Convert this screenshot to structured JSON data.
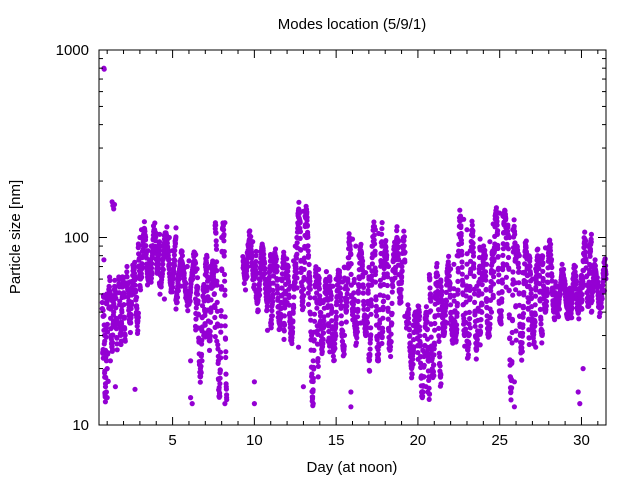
{
  "chart_data": {
    "type": "scatter",
    "title": "Modes location (5/9/1)",
    "xlabel": "Day (at noon)",
    "ylabel": "Particle size [nm]",
    "xlim": [
      0.5,
      31.5
    ],
    "ylim": [
      10,
      1000
    ],
    "yscale": "log",
    "xticks": [
      5,
      10,
      15,
      20,
      25,
      30
    ],
    "xtick_labels": [
      "5",
      "10",
      "15",
      "20",
      "25",
      "30"
    ],
    "yticks": [
      10,
      100,
      1000
    ],
    "ytick_labels": [
      "10",
      "100",
      "1000"
    ],
    "marker_color": "#9400D3",
    "grid": false,
    "legend": "none",
    "series": [
      {
        "points": [
          [
            0.8,
            800
          ],
          [
            0.82,
            790
          ],
          [
            0.7,
            45
          ],
          [
            0.75,
            38
          ],
          [
            0.8,
            32
          ],
          [
            0.85,
            28
          ],
          [
            0.9,
            25
          ],
          [
            0.95,
            22
          ],
          [
            1.0,
            20
          ],
          [
            0.8,
            76
          ],
          [
            0.85,
            18
          ],
          [
            0.9,
            16
          ],
          [
            0.95,
            15
          ],
          [
            1.0,
            14
          ],
          [
            1.1,
            42
          ],
          [
            1.2,
            50
          ],
          [
            1.3,
            46
          ],
          [
            1.4,
            40
          ],
          [
            1.5,
            36
          ],
          [
            1.3,
            155
          ],
          [
            1.35,
            148
          ],
          [
            1.4,
            142
          ],
          [
            1.45,
            150
          ],
          [
            1.5,
            16
          ],
          [
            1.2,
            22
          ],
          [
            1.3,
            30
          ],
          [
            1.7,
            35
          ],
          [
            1.8,
            38
          ],
          [
            1.9,
            40
          ],
          [
            2.0,
            55
          ],
          [
            2.2,
            62
          ],
          [
            2.4,
            58
          ],
          [
            2.6,
            50
          ],
          [
            2.7,
            15.5
          ],
          [
            2.8,
            48
          ],
          [
            2.9,
            70
          ],
          [
            3.0,
            100
          ],
          [
            3.1,
            110
          ],
          [
            3.2,
            95
          ],
          [
            3.3,
            80
          ],
          [
            3.5,
            85
          ],
          [
            3.7,
            90
          ],
          [
            3.9,
            110
          ],
          [
            4.0,
            105
          ],
          [
            4.2,
            85
          ],
          [
            4.4,
            90
          ],
          [
            4.6,
            80
          ],
          [
            4.8,
            100
          ],
          [
            5.0,
            85
          ],
          [
            5.1,
            65
          ],
          [
            5.3,
            60
          ],
          [
            5.5,
            55
          ],
          [
            5.7,
            65
          ],
          [
            5.9,
            70
          ],
          [
            6.0,
            75
          ],
          [
            6.1,
            22
          ],
          [
            6.1,
            14
          ],
          [
            6.2,
            13
          ],
          [
            6.3,
            70
          ],
          [
            6.5,
            68
          ],
          [
            6.7,
            20
          ],
          [
            6.8,
            22
          ],
          [
            6.9,
            30
          ],
          [
            7.0,
            40
          ],
          [
            7.1,
            52
          ],
          [
            7.2,
            60
          ],
          [
            7.3,
            70
          ],
          [
            7.4,
            62
          ],
          [
            7.5,
            55
          ],
          [
            7.6,
            70
          ],
          [
            7.7,
            28
          ],
          [
            7.8,
            22
          ],
          [
            7.9,
            19
          ],
          [
            8.0,
            100
          ],
          [
            8.1,
            110
          ],
          [
            8.2,
            120
          ],
          [
            8.3,
            14
          ],
          [
            8.2,
            13
          ],
          [
            9.4,
            65
          ],
          [
            9.6,
            70
          ],
          [
            9.8,
            90
          ],
          [
            9.9,
            95
          ],
          [
            10.0,
            17
          ],
          [
            10.0,
            13
          ],
          [
            10.1,
            80
          ],
          [
            10.3,
            60
          ],
          [
            10.5,
            62
          ],
          [
            10.7,
            58
          ],
          [
            10.9,
            65
          ],
          [
            11.0,
            80
          ],
          [
            11.2,
            75
          ],
          [
            11.4,
            70
          ],
          [
            11.6,
            60
          ],
          [
            11.8,
            50
          ],
          [
            12.0,
            45
          ],
          [
            12.2,
            55
          ],
          [
            12.4,
            75
          ],
          [
            12.5,
            90
          ],
          [
            12.6,
            100
          ],
          [
            12.8,
            120
          ],
          [
            13.0,
            138
          ],
          [
            13.1,
            130
          ],
          [
            13.2,
            100
          ],
          [
            13.3,
            60
          ],
          [
            13.4,
            40
          ],
          [
            13.5,
            30
          ],
          [
            13.6,
            22
          ],
          [
            13.6,
            13
          ],
          [
            13.0,
            16
          ],
          [
            14.0,
            35
          ],
          [
            14.2,
            45
          ],
          [
            14.4,
            50
          ],
          [
            14.6,
            55
          ],
          [
            14.8,
            55
          ],
          [
            15.0,
            60
          ],
          [
            15.2,
            65
          ],
          [
            15.4,
            58
          ],
          [
            15.6,
            55
          ],
          [
            15.8,
            70
          ],
          [
            15.9,
            15
          ],
          [
            15.9,
            12.5
          ],
          [
            16.0,
            98
          ],
          [
            16.2,
            90
          ],
          [
            16.4,
            80
          ],
          [
            16.6,
            70
          ],
          [
            16.8,
            65
          ],
          [
            17.0,
            60
          ],
          [
            17.2,
            90
          ],
          [
            17.4,
            110
          ],
          [
            17.6,
            105
          ],
          [
            17.8,
            90
          ],
          [
            18.0,
            80
          ],
          [
            18.2,
            70
          ],
          [
            18.4,
            60
          ],
          [
            18.6,
            65
          ],
          [
            18.8,
            95
          ],
          [
            19.0,
            62
          ],
          [
            19.5,
            30
          ],
          [
            19.7,
            34
          ],
          [
            19.9,
            38
          ],
          [
            20.1,
            32
          ],
          [
            20.3,
            25
          ],
          [
            20.5,
            16
          ],
          [
            20.6,
            15
          ],
          [
            20.7,
            40
          ],
          [
            21.0,
            48
          ],
          [
            21.2,
            55
          ],
          [
            21.4,
            58
          ],
          [
            21.6,
            42
          ],
          [
            21.8,
            64
          ],
          [
            22.0,
            68
          ],
          [
            22.2,
            72
          ],
          [
            22.4,
            80
          ],
          [
            22.6,
            100
          ],
          [
            22.8,
            125
          ],
          [
            23.0,
            110
          ],
          [
            23.2,
            85
          ],
          [
            23.4,
            70
          ],
          [
            23.6,
            55
          ],
          [
            23.8,
            60
          ],
          [
            24.0,
            65
          ],
          [
            24.2,
            72
          ],
          [
            24.4,
            95
          ],
          [
            24.6,
            118
          ],
          [
            24.8,
            125
          ],
          [
            25.0,
            135
          ],
          [
            25.2,
            130
          ],
          [
            25.4,
            90
          ],
          [
            25.6,
            100
          ],
          [
            25.8,
            110
          ],
          [
            25.9,
            17
          ],
          [
            25.9,
            12.5
          ],
          [
            26.0,
            85
          ],
          [
            26.2,
            80
          ],
          [
            26.4,
            65
          ],
          [
            26.6,
            58
          ],
          [
            26.8,
            55
          ],
          [
            27.0,
            60
          ],
          [
            27.2,
            68
          ],
          [
            27.4,
            72
          ],
          [
            27.6,
            80
          ],
          [
            27.8,
            88
          ],
          [
            28.0,
            86
          ],
          [
            28.2,
            62
          ],
          [
            28.4,
            58
          ],
          [
            28.6,
            55
          ],
          [
            28.8,
            54
          ],
          [
            29.0,
            56
          ],
          [
            29.2,
            52
          ],
          [
            29.4,
            50
          ],
          [
            29.6,
            48
          ],
          [
            29.8,
            50
          ],
          [
            30.0,
            62
          ],
          [
            30.2,
            80
          ],
          [
            30.4,
            90
          ],
          [
            30.5,
            92
          ],
          [
            30.6,
            70
          ],
          [
            30.8,
            60
          ],
          [
            31.0,
            58
          ],
          [
            31.2,
            55
          ],
          [
            31.4,
            52
          ],
          [
            29.8,
            15
          ],
          [
            29.9,
            13
          ],
          [
            30.1,
            20
          ],
          [
            4.5,
            47
          ],
          [
            6.4,
            47
          ],
          [
            10.8,
            32
          ],
          [
            12.7,
            26
          ],
          [
            14.5,
            28
          ],
          [
            16.5,
            35
          ],
          [
            19.2,
            38
          ],
          [
            21.8,
            35
          ],
          [
            23.2,
            33
          ],
          [
            24.5,
            40
          ],
          [
            27.2,
            26
          ],
          [
            28.6,
            42
          ]
        ]
      }
    ],
    "bands": [
      [
        0.7,
        0.75,
        22,
        48
      ],
      [
        0.75,
        1.05,
        14,
        50
      ],
      [
        1.1,
        1.6,
        26,
        55
      ],
      [
        1.7,
        2.1,
        30,
        60
      ],
      [
        2.2,
        2.9,
        35,
        70
      ],
      [
        2.9,
        3.6,
        60,
        112
      ],
      [
        3.6,
        4.2,
        65,
        110
      ],
      [
        4.2,
        5.2,
        55,
        105
      ],
      [
        5.2,
        6.4,
        45,
        75
      ],
      [
        6.4,
        7.0,
        18,
        55
      ],
      [
        7.0,
        7.6,
        28,
        75
      ],
      [
        7.6,
        8.3,
        14,
        120
      ],
      [
        9.3,
        10.1,
        60,
        98
      ],
      [
        10.1,
        11.0,
        45,
        90
      ],
      [
        11.0,
        11.8,
        35,
        80
      ],
      [
        11.8,
        12.6,
        28,
        70
      ],
      [
        12.6,
        13.3,
        45,
        142
      ],
      [
        13.3,
        13.9,
        14,
        65
      ],
      [
        13.9,
        14.6,
        26,
        60
      ],
      [
        14.6,
        15.5,
        25,
        65
      ],
      [
        15.5,
        16.1,
        40,
        100
      ],
      [
        16.1,
        17.0,
        30,
        85
      ],
      [
        17.0,
        17.8,
        22,
        115
      ],
      [
        17.8,
        18.6,
        25,
        90
      ],
      [
        18.6,
        19.2,
        45,
        100
      ],
      [
        19.3,
        20.0,
        20,
        40
      ],
      [
        20.0,
        20.7,
        14,
        40
      ],
      [
        20.7,
        21.4,
        18,
        65
      ],
      [
        21.4,
        22.2,
        30,
        72
      ],
      [
        22.2,
        23.0,
        30,
        128
      ],
      [
        23.0,
        23.8,
        25,
        110
      ],
      [
        23.8,
        24.6,
        30,
        85
      ],
      [
        24.6,
        25.4,
        35,
        140
      ],
      [
        25.4,
        26.0,
        15,
        115
      ],
      [
        26.0,
        26.8,
        25,
        90
      ],
      [
        26.8,
        27.6,
        30,
        80
      ],
      [
        27.6,
        28.4,
        40,
        90
      ],
      [
        28.4,
        29.3,
        42,
        65
      ],
      [
        29.3,
        30.0,
        40,
        65
      ],
      [
        30.0,
        30.6,
        45,
        95
      ],
      [
        30.6,
        31.5,
        42,
        68
      ]
    ]
  }
}
